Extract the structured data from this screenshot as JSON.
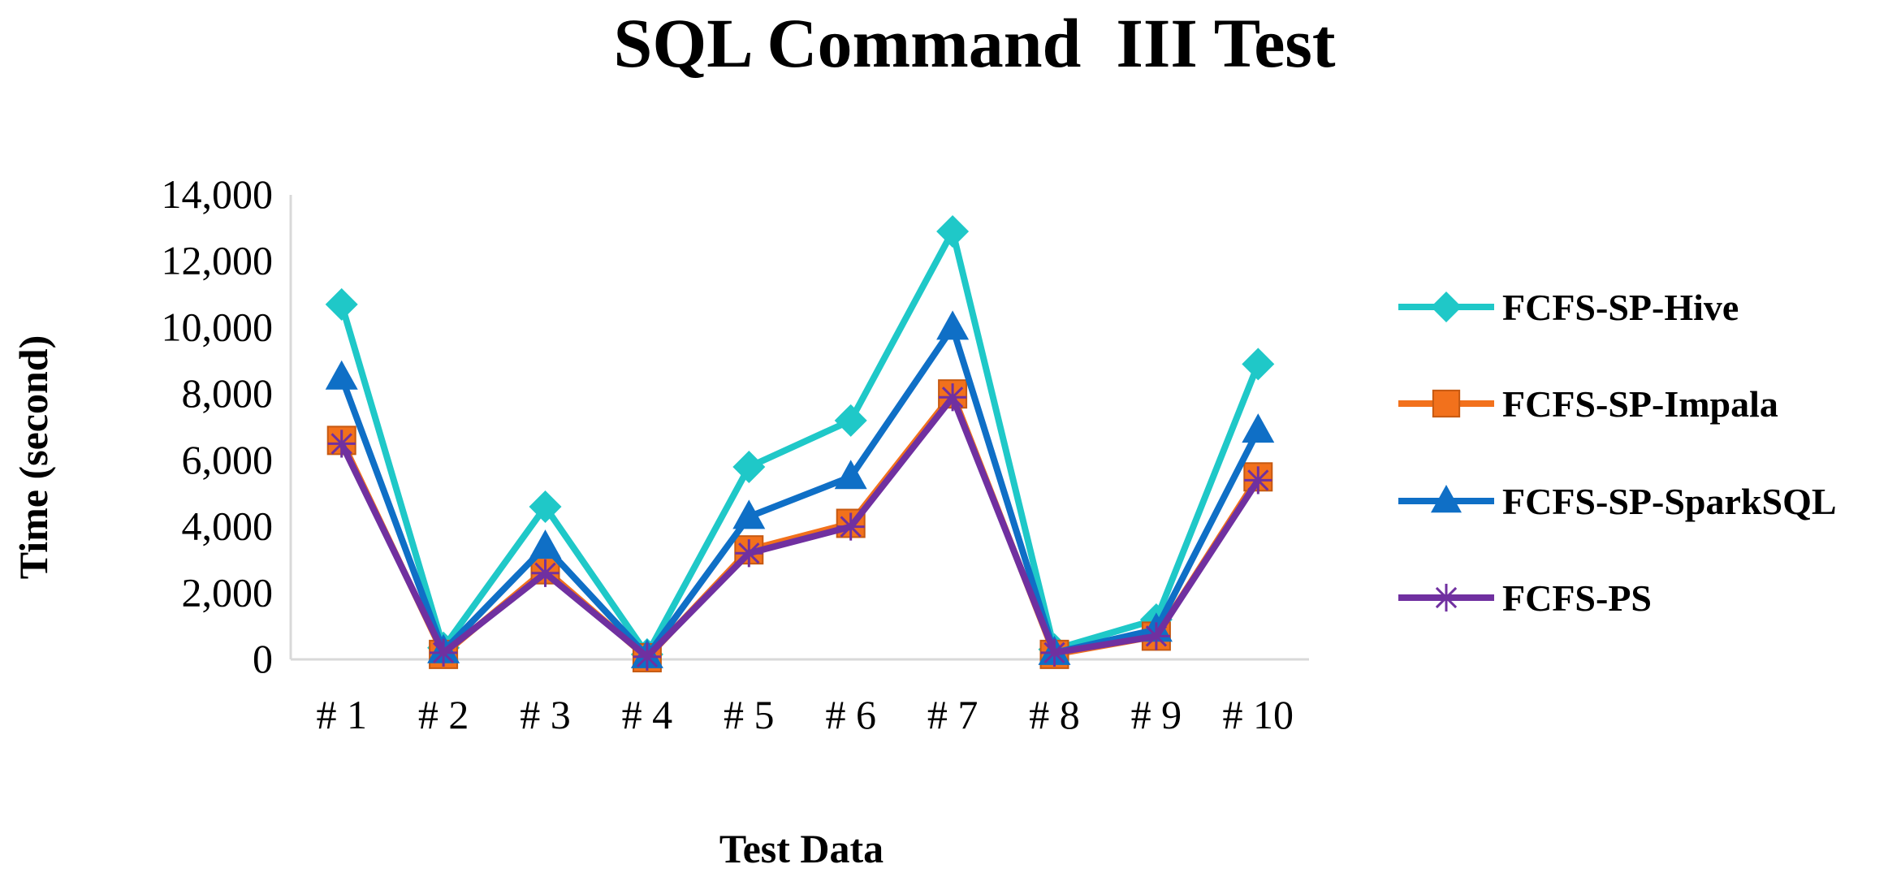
{
  "chart_data": {
    "type": "line",
    "title": "SQL Command  III Test",
    "xlabel": "Test Data",
    "ylabel": "Time (second)",
    "categories": [
      "# 1",
      "# 2",
      "# 3",
      "# 4",
      "# 5",
      "# 6",
      "# 7",
      "# 8",
      "# 9",
      "# 10"
    ],
    "ylim": [
      0,
      14000
    ],
    "yticks": [
      0,
      2000,
      4000,
      6000,
      8000,
      10000,
      12000,
      14000
    ],
    "ytick_labels": [
      "0",
      "2,000",
      "4,000",
      "6,000",
      "8,000",
      "10,000",
      "12,000",
      "14,000"
    ],
    "grid": false,
    "legend_position": "right",
    "series": [
      {
        "name": "FCFS-SP-Hive",
        "color": "#1FC8C8",
        "marker": "diamond",
        "values": [
          10700,
          350,
          4600,
          150,
          5800,
          7200,
          12900,
          300,
          1200,
          8900
        ]
      },
      {
        "name": "FCFS-SP-Impala",
        "color": "#F2711C",
        "marker": "square",
        "values": [
          6600,
          150,
          2700,
          50,
          3300,
          4100,
          8000,
          150,
          700,
          5500
        ]
      },
      {
        "name": "FCFS-SP-SparkSQL",
        "color": "#0F6FC6",
        "marker": "triangle",
        "values": [
          8500,
          250,
          3400,
          100,
          4300,
          5500,
          10000,
          200,
          900,
          6900
        ]
      },
      {
        "name": "FCFS-PS",
        "color": "#7030A0",
        "marker": "asterisk",
        "values": [
          6500,
          200,
          2600,
          80,
          3200,
          4000,
          7900,
          200,
          700,
          5400
        ]
      }
    ]
  }
}
